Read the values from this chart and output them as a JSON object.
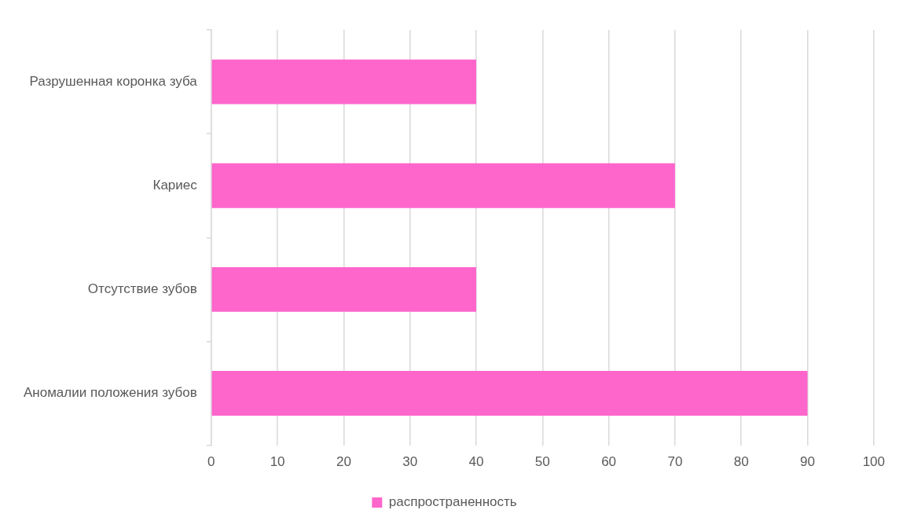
{
  "chart_data": {
    "type": "bar",
    "orientation": "horizontal",
    "categories": [
      "Разрушенная коронка зуба",
      "Кариес",
      "Отсутствие зубов",
      "Аномалии положения зубов"
    ],
    "series": [
      {
        "name": "распространенность",
        "color": "#ff66cc",
        "values": [
          40,
          70,
          40,
          90
        ]
      }
    ],
    "xlim": [
      0,
      100
    ],
    "xticks": [
      0,
      10,
      20,
      30,
      40,
      50,
      60,
      70,
      80,
      90,
      100
    ],
    "grid": "x",
    "legend": "bottom"
  }
}
